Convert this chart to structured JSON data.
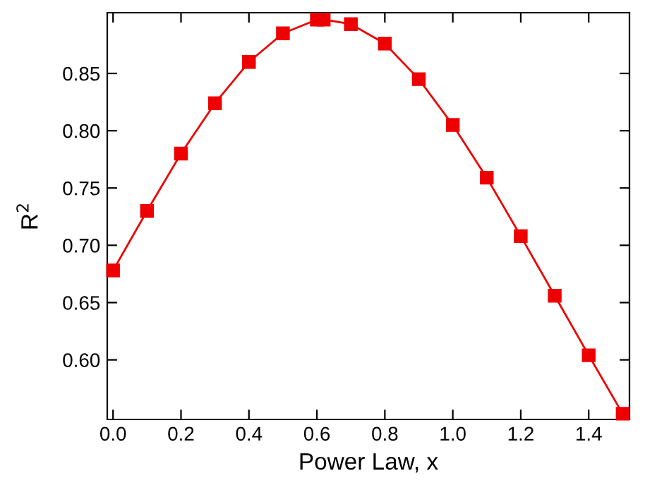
{
  "chart_data": {
    "type": "line",
    "xlabel": "Power Law, x",
    "ylabel": "R$^{2}$",
    "x": [
      0.0,
      0.1,
      0.2,
      0.3,
      0.4,
      0.5,
      0.6,
      0.62,
      0.7,
      0.8,
      0.9,
      1.0,
      1.1,
      1.2,
      1.3,
      1.4,
      1.5
    ],
    "series": [
      {
        "color": "#ee0000",
        "values": [
          0.678,
          0.73,
          0.78,
          0.824,
          0.86,
          0.885,
          0.897,
          0.897,
          0.893,
          0.876,
          0.845,
          0.805,
          0.759,
          0.708,
          0.656,
          0.604,
          0.553
        ]
      }
    ],
    "xlim": [
      -0.017,
      1.52
    ],
    "ylim": [
      0.548,
      0.903
    ],
    "xticks": [
      {
        "value": 0.0,
        "label": "0.0"
      },
      {
        "value": 0.2,
        "label": "0.2"
      },
      {
        "value": 0.4,
        "label": "0.4"
      },
      {
        "value": 0.6,
        "label": "0.6"
      },
      {
        "value": 0.8,
        "label": "0.8"
      },
      {
        "value": 1.0,
        "label": "1.0"
      },
      {
        "value": 1.2,
        "label": "1.2"
      },
      {
        "value": 1.4,
        "label": "1.4"
      }
    ],
    "yticks": [
      {
        "value": 0.6,
        "label": "0.60"
      },
      {
        "value": 0.65,
        "label": "0.65"
      },
      {
        "value": 0.7,
        "label": "0.70"
      },
      {
        "value": 0.75,
        "label": "0.75"
      },
      {
        "value": 0.8,
        "label": "0.80"
      },
      {
        "value": 0.85,
        "label": "0.85"
      }
    ],
    "marker": "square",
    "line_style": "solid",
    "grid": false,
    "legend": false
  }
}
